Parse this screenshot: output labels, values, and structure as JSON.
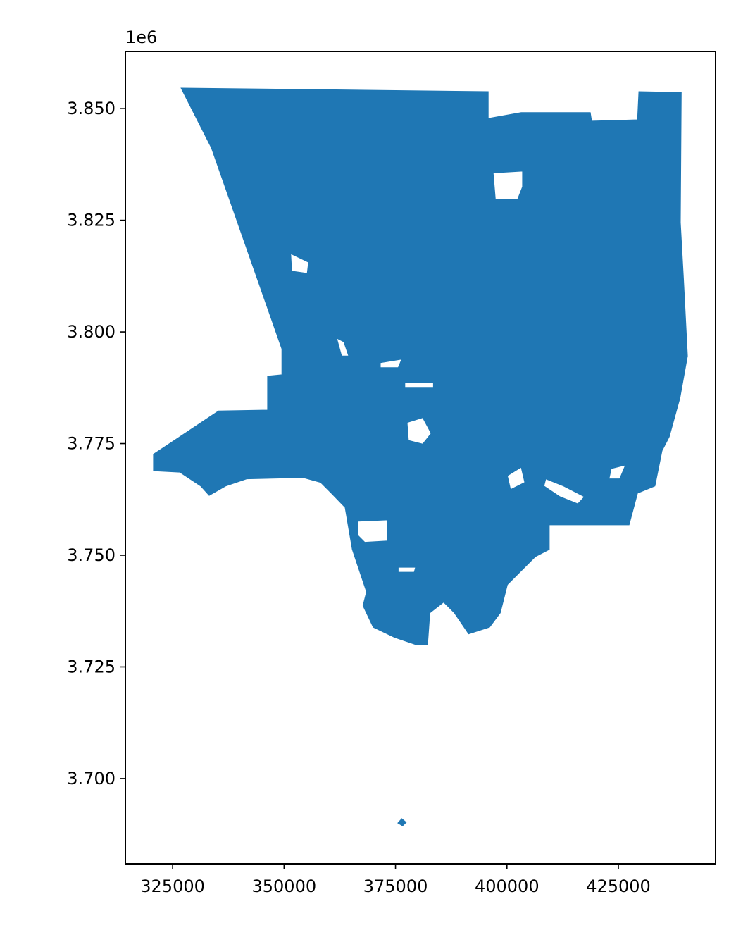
{
  "chart_data": {
    "type": "map",
    "fill_color": "#1f77b4",
    "edge_color": "#3a89c0",
    "xlim": [
      314400,
      446800
    ],
    "ylim": [
      3680900,
      3862800
    ],
    "y_offset_label": "1e6",
    "x_ticks": [
      325000,
      350000,
      375000,
      400000,
      425000
    ],
    "x_tick_labels": [
      "325000",
      "350000",
      "375000",
      "400000",
      "425000"
    ],
    "y_ticks": [
      3850000,
      3825000,
      3800000,
      3775000,
      3750000,
      3725000,
      3700000
    ],
    "y_tick_labels": [
      "3.850",
      "3.825",
      "3.800",
      "3.775",
      "3.750",
      "3.725",
      "3.700"
    ],
    "outline": [
      [
        326900,
        3854600
      ],
      [
        395800,
        3853800
      ],
      [
        395800,
        3847800
      ],
      [
        403200,
        3849100
      ],
      [
        418700,
        3849100
      ],
      [
        419000,
        3847200
      ],
      [
        429300,
        3847500
      ],
      [
        429600,
        3853800
      ],
      [
        439100,
        3853600
      ],
      [
        438900,
        3824500
      ],
      [
        439600,
        3812000
      ],
      [
        440500,
        3794600
      ],
      [
        438800,
        3785200
      ],
      [
        436400,
        3776500
      ],
      [
        434800,
        3773400
      ],
      [
        433200,
        3765500
      ],
      [
        429300,
        3763900
      ],
      [
        427400,
        3756800
      ],
      [
        409500,
        3756800
      ],
      [
        409500,
        3751300
      ],
      [
        406400,
        3749700
      ],
      [
        403200,
        3746500
      ],
      [
        400100,
        3743400
      ],
      [
        398500,
        3737100
      ],
      [
        396100,
        3733900
      ],
      [
        391400,
        3732400
      ],
      [
        388200,
        3737100
      ],
      [
        385800,
        3739500
      ],
      [
        382700,
        3737100
      ],
      [
        382200,
        3730000
      ],
      [
        379500,
        3730000
      ],
      [
        374800,
        3731600
      ],
      [
        370000,
        3733900
      ],
      [
        367700,
        3738700
      ],
      [
        368500,
        3741800
      ],
      [
        365300,
        3751300
      ],
      [
        363700,
        3760700
      ],
      [
        360600,
        3763900
      ],
      [
        358200,
        3766300
      ],
      [
        354200,
        3767400
      ],
      [
        341600,
        3767100
      ],
      [
        336900,
        3765500
      ],
      [
        333200,
        3763400
      ],
      [
        331300,
        3765500
      ],
      [
        326600,
        3768600
      ],
      [
        320700,
        3768900
      ],
      [
        320700,
        3772600
      ],
      [
        335300,
        3782300
      ],
      [
        346300,
        3782500
      ],
      [
        346300,
        3790100
      ],
      [
        349500,
        3790400
      ],
      [
        349500,
        3796200
      ],
      [
        333700,
        3841200
      ]
    ],
    "holes": [
      [
        [
          396900,
          3835600
        ],
        [
          403500,
          3836000
        ],
        [
          403500,
          3832500
        ],
        [
          402400,
          3829700
        ],
        [
          397400,
          3829700
        ]
      ],
      [
        [
          351500,
          3817500
        ],
        [
          355500,
          3815600
        ],
        [
          355200,
          3813100
        ],
        [
          351700,
          3813600
        ]
      ],
      [
        [
          377600,
          3779700
        ],
        [
          381100,
          3780800
        ],
        [
          383000,
          3777300
        ],
        [
          381100,
          3774900
        ],
        [
          377900,
          3775700
        ]
      ],
      [
        [
          371600,
          3793100
        ],
        [
          376400,
          3793900
        ],
        [
          375600,
          3792000
        ],
        [
          371600,
          3792000
        ]
      ],
      [
        [
          377100,
          3788700
        ],
        [
          383500,
          3788700
        ],
        [
          383500,
          3787600
        ],
        [
          377100,
          3787600
        ]
      ],
      [
        [
          366600,
          3757600
        ],
        [
          373200,
          3757900
        ],
        [
          373200,
          3753200
        ],
        [
          368100,
          3752900
        ],
        [
          366600,
          3754400
        ]
      ],
      [
        [
          408700,
          3767100
        ],
        [
          412700,
          3765500
        ],
        [
          417400,
          3763100
        ],
        [
          415900,
          3761500
        ],
        [
          411900,
          3763100
        ],
        [
          408300,
          3765500
        ]
      ],
      [
        [
          400100,
          3767800
        ],
        [
          403200,
          3769700
        ],
        [
          404000,
          3766300
        ],
        [
          400800,
          3764700
        ]
      ],
      [
        [
          361800,
          3798600
        ],
        [
          363400,
          3797800
        ],
        [
          364500,
          3794600
        ],
        [
          362900,
          3794600
        ]
      ],
      [
        [
          423400,
          3769400
        ],
        [
          426600,
          3770200
        ],
        [
          425300,
          3767100
        ],
        [
          422900,
          3767100
        ]
      ],
      [
        [
          375600,
          3747300
        ],
        [
          379500,
          3747300
        ],
        [
          379200,
          3746200
        ],
        [
          375600,
          3746200
        ]
      ]
    ],
    "islands": [
      [
        [
          376400,
          3691100
        ],
        [
          377500,
          3690200
        ],
        [
          376600,
          3689300
        ],
        [
          375400,
          3690000
        ]
      ]
    ]
  }
}
